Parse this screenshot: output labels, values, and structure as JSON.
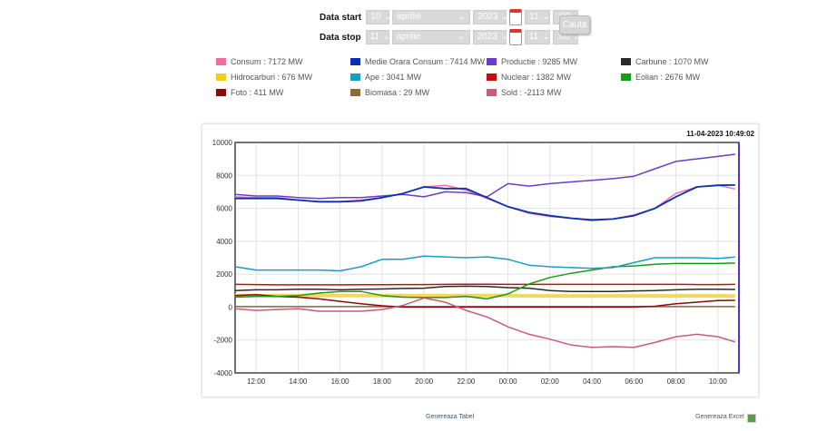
{
  "form": {
    "start": {
      "label": "Data start",
      "day": "10",
      "month": "aprilie",
      "year": "2023",
      "hour": "11",
      "minute": ":00"
    },
    "stop": {
      "label": "Data stop",
      "day": "11",
      "month": "aprilie",
      "year": "2023",
      "hour": "11",
      "minute": ":00"
    },
    "search_label": "Cauta"
  },
  "legend": [
    {
      "label": "Consum : 7172 MW",
      "color": "#f06fa0"
    },
    {
      "label": "Medie Orara Consum : 7414 MW",
      "color": "#0a2fb5"
    },
    {
      "label": "Productie : 9285 MW",
      "color": "#6a3cc8"
    },
    {
      "label": "Carbune : 1070 MW",
      "color": "#2a2a2a"
    },
    {
      "label": "Hidrocarburi : 676 MW",
      "color": "#f2cc1a"
    },
    {
      "label": "Ape : 3041 MW",
      "color": "#1a9cc4"
    },
    {
      "label": "Nuclear : 1382 MW",
      "color": "#c01010"
    },
    {
      "label": "Eolian : 2676 MW",
      "color": "#1a9a1a"
    },
    {
      "label": "Foto : 411 MW",
      "color": "#8a0a0a"
    },
    {
      "label": "Biomasa : 29 MW",
      "color": "#8c6a3a"
    },
    {
      "label": "Sold : -2113 MW",
      "color": "#c85a7a"
    }
  ],
  "chart_data": {
    "type": "line",
    "timestamp": "11-04-2023 10:49:02",
    "ylim": [
      -4000,
      10000
    ],
    "yticks": [
      "10000",
      "8000",
      "6000",
      "4000",
      "2000",
      "0",
      "-2000",
      "-4000"
    ],
    "xticks": [
      "12:00",
      "14:00",
      "16:00",
      "18:00",
      "20:00",
      "22:00",
      "00:00",
      "02:00",
      "04:00",
      "06:00",
      "08:00",
      "10:00"
    ],
    "x": [
      "10-04 11:00",
      "10-04 12:00",
      "10-04 13:00",
      "10-04 14:00",
      "10-04 15:00",
      "10-04 16:00",
      "10-04 17:00",
      "10-04 18:00",
      "10-04 19:00",
      "10-04 20:00",
      "10-04 21:00",
      "10-04 22:00",
      "10-04 23:00",
      "11-04 00:00",
      "11-04 01:00",
      "11-04 02:00",
      "11-04 03:00",
      "11-04 04:00",
      "11-04 05:00",
      "11-04 06:00",
      "11-04 07:00",
      "11-04 08:00",
      "11-04 09:00",
      "11-04 10:00",
      "11-04 10:49"
    ],
    "grid": true,
    "series": [
      {
        "name": "Hidrocarburi",
        "color": "#f2d860",
        "width": 4,
        "values": [
          700,
          700,
          700,
          700,
          700,
          700,
          700,
          700,
          700,
          700,
          700,
          700,
          700,
          700,
          680,
          680,
          680,
          680,
          680,
          680,
          680,
          680,
          680,
          680,
          676
        ]
      },
      {
        "name": "Biomasa",
        "color": "#8c6a3a",
        "width": 1.5,
        "values": [
          29,
          29,
          29,
          29,
          29,
          29,
          29,
          29,
          29,
          29,
          29,
          29,
          29,
          29,
          29,
          29,
          29,
          29,
          29,
          29,
          29,
          29,
          29,
          29,
          29
        ]
      },
      {
        "name": "Foto",
        "color": "#8a0a0a",
        "width": 1.5,
        "values": [
          700,
          750,
          650,
          600,
          500,
          350,
          200,
          80,
          0,
          0,
          0,
          0,
          0,
          0,
          0,
          0,
          0,
          0,
          0,
          0,
          50,
          200,
          300,
          400,
          411
        ]
      },
      {
        "name": "Nuclear",
        "color": "#c01010",
        "width": 1.5,
        "values": [
          1380,
          1370,
          1350,
          1350,
          1350,
          1350,
          1360,
          1360,
          1370,
          1370,
          1380,
          1390,
          1390,
          1380,
          1380,
          1380,
          1380,
          1380,
          1380,
          1380,
          1380,
          1380,
          1370,
          1370,
          1382
        ]
      },
      {
        "name": "Carbune",
        "color": "#2a2a2a",
        "width": 1.5,
        "values": [
          1000,
          1050,
          1050,
          1080,
          1080,
          1050,
          1080,
          1100,
          1130,
          1150,
          1250,
          1270,
          1250,
          1180,
          1150,
          1000,
          950,
          950,
          950,
          980,
          1000,
          1050,
          1080,
          1080,
          1070
        ]
      },
      {
        "name": "Eolian",
        "color": "#1a9a1a",
        "width": 1.5,
        "values": [
          600,
          650,
          650,
          700,
          850,
          950,
          950,
          700,
          600,
          580,
          580,
          650,
          500,
          800,
          1400,
          1800,
          2050,
          2250,
          2450,
          2500,
          2600,
          2650,
          2650,
          2650,
          2676
        ]
      },
      {
        "name": "Ape",
        "color": "#1a9cc4",
        "width": 1.5,
        "values": [
          2450,
          2250,
          2250,
          2250,
          2250,
          2200,
          2450,
          2900,
          2900,
          3100,
          3050,
          3000,
          3050,
          2900,
          2550,
          2450,
          2400,
          2350,
          2400,
          2700,
          3000,
          3000,
          3000,
          2950,
          3041
        ]
      },
      {
        "name": "Sold",
        "color": "#c85a7a",
        "width": 1.5,
        "values": [
          -100,
          -200,
          -150,
          -100,
          -250,
          -250,
          -250,
          -150,
          100,
          550,
          300,
          -200,
          -600,
          -1200,
          -1650,
          -1950,
          -2300,
          -2450,
          -2400,
          -2450,
          -2150,
          -1800,
          -1650,
          -1800,
          -2113
        ]
      },
      {
        "name": "Consum",
        "color": "#f06fa0",
        "width": 1.5,
        "values": [
          6700,
          6650,
          6650,
          6500,
          6400,
          6400,
          6500,
          6650,
          6900,
          7300,
          7400,
          7100,
          6600,
          6100,
          5700,
          5500,
          5400,
          5250,
          5350,
          5600,
          6000,
          6900,
          7300,
          7400,
          7172
        ]
      },
      {
        "name": "Productie",
        "color": "#6a3cc8",
        "width": 1.5,
        "values": [
          6850,
          6750,
          6750,
          6650,
          6600,
          6650,
          6650,
          6750,
          6850,
          6700,
          7000,
          6950,
          6700,
          7500,
          7350,
          7500,
          7600,
          7700,
          7800,
          7950,
          8400,
          8850,
          9000,
          9150,
          9285
        ]
      },
      {
        "name": "Medie Orara Consum",
        "color": "#0a2fb5",
        "width": 1.8,
        "values": [
          6600,
          6600,
          6600,
          6500,
          6400,
          6400,
          6450,
          6650,
          6900,
          7300,
          7200,
          7200,
          6650,
          6100,
          5750,
          5550,
          5400,
          5300,
          5350,
          5550,
          6000,
          6700,
          7300,
          7400,
          7414
        ]
      }
    ]
  },
  "footer": {
    "table_link": "Genereaza Tabel",
    "excel_link": "Genereaza Excel"
  }
}
